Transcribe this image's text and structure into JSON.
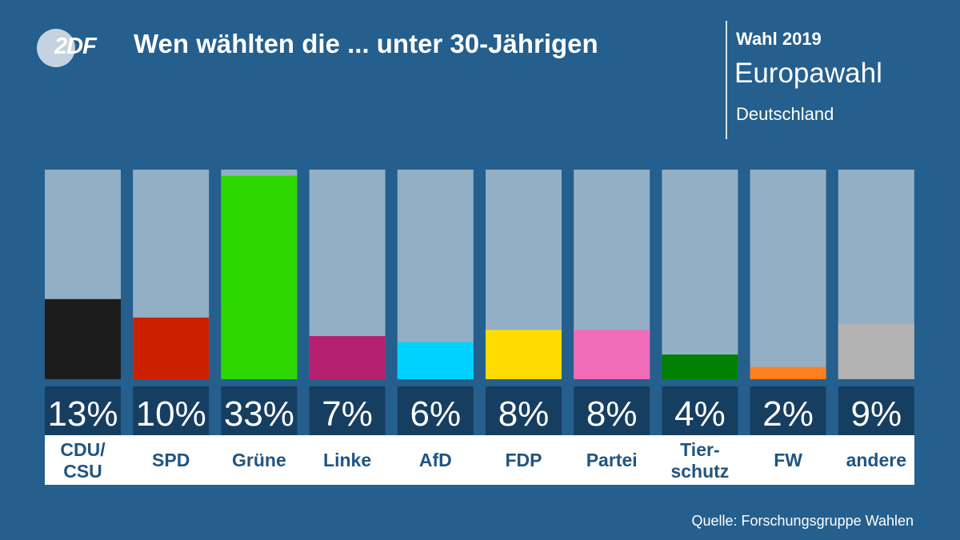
{
  "header": {
    "logo_text": "2DF",
    "title": "Wen wählten die ... unter 30-Jährigen",
    "kicker": "Wahl 2019",
    "headline": "Europawahl",
    "subline": "Deutschland"
  },
  "source": "Quelle: Forschungsgruppe Wahlen",
  "chart_data": {
    "type": "bar",
    "categories": [
      [
        "CDU/",
        "CSU"
      ],
      [
        "SPD"
      ],
      [
        "Grüne"
      ],
      [
        "Linke"
      ],
      [
        "AfD"
      ],
      [
        "FDP"
      ],
      [
        "Partei"
      ],
      [
        "Tier-",
        "schutz"
      ],
      [
        "FW"
      ],
      [
        "andere"
      ]
    ],
    "values": [
      13,
      10,
      33,
      7,
      6,
      8,
      8,
      4,
      2,
      9
    ],
    "value_labels": [
      "13%",
      "10%",
      "33%",
      "7%",
      "6%",
      "8%",
      "8%",
      "4%",
      "2%",
      "9%"
    ],
    "colors": [
      "#1c1c1c",
      "#cc1f00",
      "#2dd800",
      "#b5216e",
      "#00d2ff",
      "#ffdc00",
      "#f06cb8",
      "#008000",
      "#ff8020",
      "#b3b3b3"
    ],
    "background_bar_color": "#93afc5",
    "value_box_color": "#163e61",
    "label_color": "#1f5582",
    "ylim": [
      0,
      34
    ]
  }
}
